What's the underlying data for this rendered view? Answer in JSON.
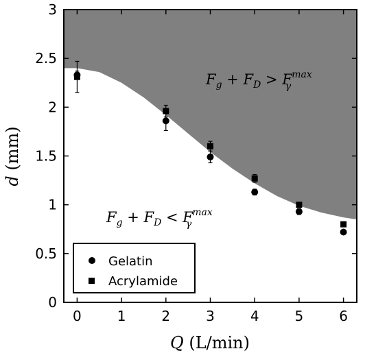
{
  "chart_data": {
    "type": "scatter",
    "title": "",
    "xlabel_var": "Q",
    "xlabel_unit": "(L/min)",
    "ylabel_var": "d",
    "ylabel_unit": "(mm)",
    "xlim": [
      -0.3,
      6.3
    ],
    "ylim": [
      0,
      3
    ],
    "xticks": [
      0,
      1,
      2,
      3,
      4,
      5,
      6
    ],
    "yticks": [
      0,
      0.5,
      1,
      1.5,
      2,
      2.5,
      3
    ],
    "ytick_labels": [
      "0",
      "0.5",
      "1",
      "1.5",
      "2",
      "2.5",
      "3"
    ],
    "grid": false,
    "legend_position": "bottom-left",
    "region_colors": {
      "shaded": "#808080",
      "unshaded": "#ffffff"
    },
    "boundary_curve": {
      "x": [
        -0.3,
        0,
        0.5,
        1,
        1.5,
        2,
        2.5,
        3,
        3.5,
        4,
        4.5,
        5,
        5.5,
        6,
        6.3
      ],
      "y": [
        2.4,
        2.4,
        2.36,
        2.25,
        2.1,
        1.92,
        1.73,
        1.54,
        1.37,
        1.22,
        1.09,
        0.99,
        0.92,
        0.87,
        0.85
      ]
    },
    "annotations": [
      {
        "text": "F_g + F_D > F_γ^max",
        "region": "upper"
      },
      {
        "text": "F_g + F_D < F_γ^max",
        "region": "lower"
      }
    ],
    "series": [
      {
        "name": "Gelatin",
        "marker": "circle",
        "x": [
          0,
          2,
          3,
          4,
          5,
          6
        ],
        "y": [
          2.33,
          1.86,
          1.49,
          1.13,
          0.93,
          0.72
        ],
        "err": [
          0.04,
          0.1,
          0.06,
          0.03,
          0.03,
          0.02
        ]
      },
      {
        "name": "Acrylamide",
        "marker": "square",
        "x": [
          0,
          2,
          3,
          4,
          5,
          6
        ],
        "y": [
          2.31,
          1.96,
          1.6,
          1.27,
          1.0,
          0.8
        ],
        "err": [
          0.16,
          0.06,
          0.05,
          0.04,
          0.02,
          0.02
        ]
      }
    ]
  }
}
